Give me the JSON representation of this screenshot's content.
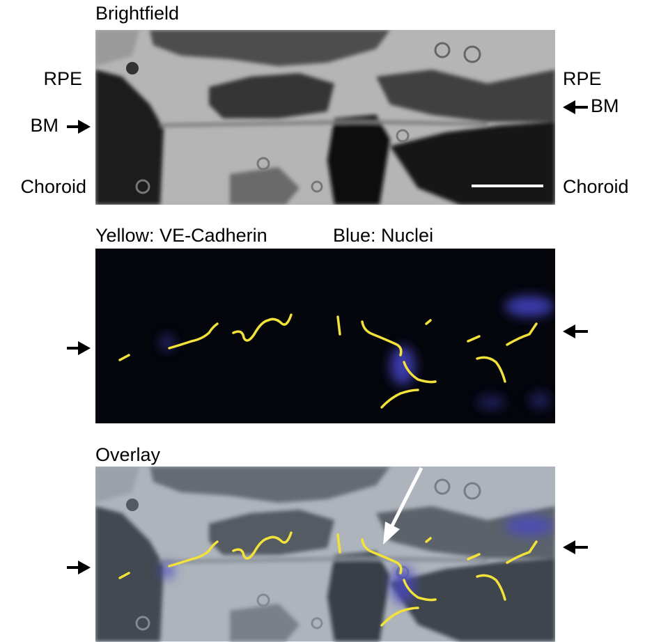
{
  "panels": [
    {
      "title": "Brightfield",
      "left_labels": [
        "RPE",
        "BM",
        "Choroid"
      ],
      "right_labels": [
        "RPE",
        "BM",
        "Choroid"
      ]
    },
    {
      "title_parts": [
        "Yellow: VE-Cadherin",
        "Blue: Nuclei"
      ]
    },
    {
      "title": "Overlay"
    }
  ]
}
